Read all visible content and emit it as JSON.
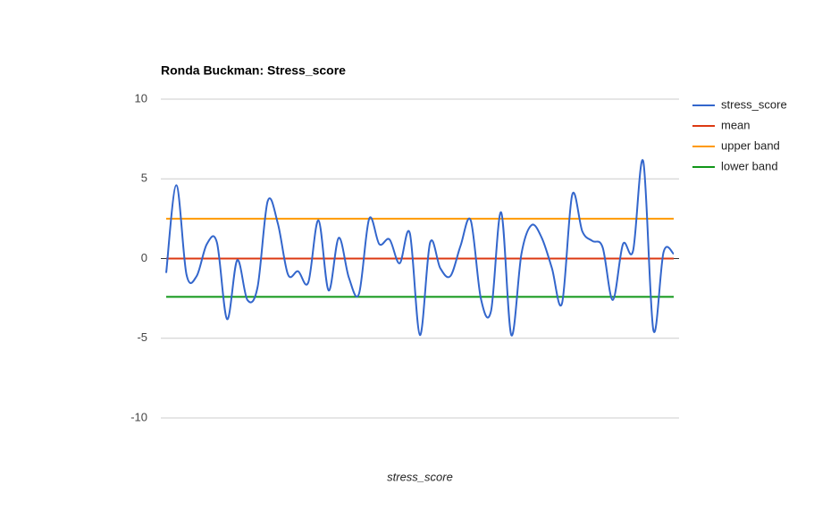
{
  "chart_data": {
    "type": "line",
    "title": "Ronda Buckman: Stress_score",
    "x_label": "stress_score",
    "ylim": [
      -10,
      10
    ],
    "yticks": [
      -10,
      -5,
      0,
      5,
      10
    ],
    "grid": true,
    "legend": "right",
    "series": [
      {
        "name": "stress_score",
        "color": "#3366cc",
        "values": [
          -0.9,
          4.6,
          -1.0,
          -1.1,
          0.9,
          1.0,
          -3.8,
          -0.1,
          -2.6,
          -1.8,
          3.6,
          2.2,
          -1.0,
          -0.8,
          -1.5,
          2.4,
          -2.0,
          1.3,
          -1.2,
          -2.2,
          2.5,
          0.9,
          1.2,
          -0.3,
          1.6,
          -4.8,
          1.0,
          -0.6,
          -1.1,
          0.8,
          2.4,
          -2.5,
          -3.3,
          2.9,
          -4.8,
          0.3,
          2.1,
          1.3,
          -0.6,
          -2.8,
          4.0,
          1.7,
          1.1,
          0.7,
          -2.6,
          0.9,
          0.5,
          6.1,
          -4.5,
          0.4,
          0.3
        ]
      },
      {
        "name": "mean",
        "color": "#dc3912",
        "value": 0
      },
      {
        "name": "upper band",
        "color": "#ff9900",
        "value": 2.5
      },
      {
        "name": "lower band",
        "color": "#109618",
        "value": -2.4
      }
    ]
  }
}
